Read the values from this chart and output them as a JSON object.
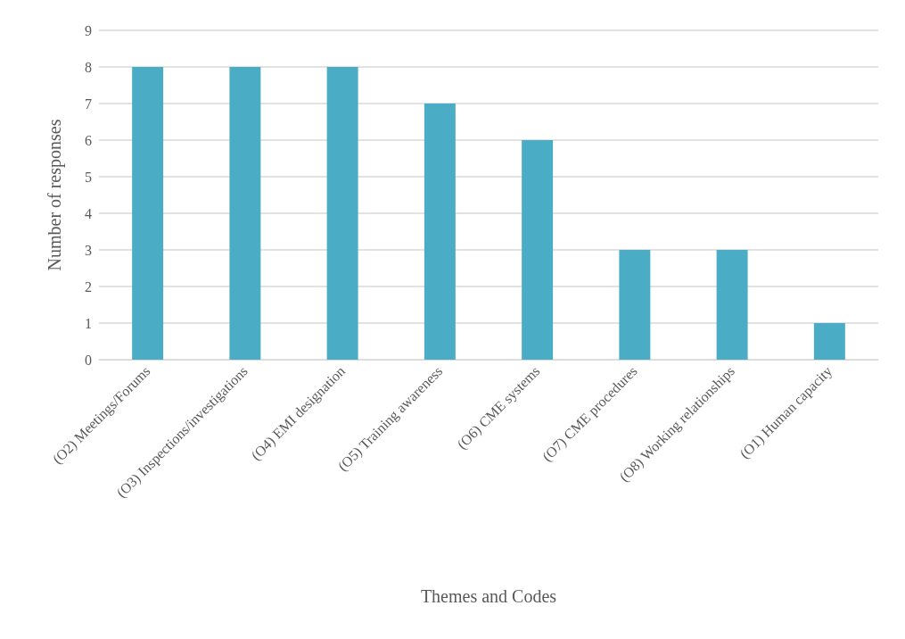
{
  "chart_data": {
    "type": "bar",
    "xlabel": "Themes and Codes",
    "ylabel": "Number of responses",
    "categories": [
      "(O2) Meetings/Forums",
      "(O3) Inspections/investigations",
      "(O4) EMI designation",
      "(O5) Training awareness",
      "(O6) CME systems",
      "(O7) CME procedures",
      "(O8) Working relationships",
      "(O1) Human capacity"
    ],
    "values": [
      8,
      8,
      8,
      7,
      6,
      3,
      3,
      1
    ],
    "color": "#4bacc6",
    "ylim": [
      0,
      9
    ],
    "yticks": [
      0,
      1,
      2,
      3,
      4,
      5,
      6,
      7,
      8,
      9
    ],
    "grid": true
  }
}
